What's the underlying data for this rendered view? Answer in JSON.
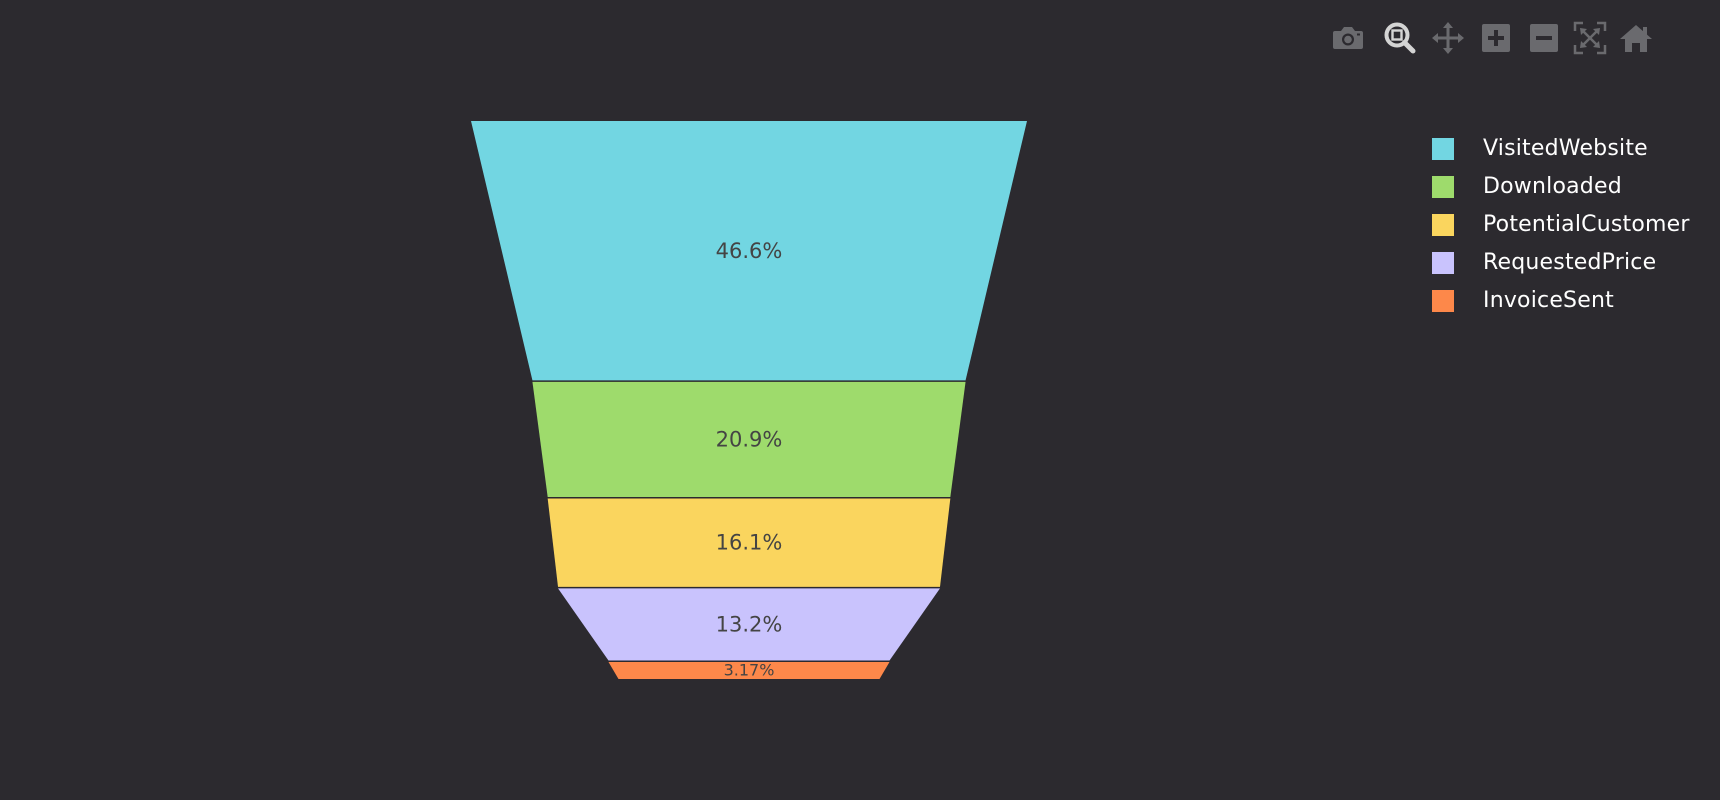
{
  "chart_data": {
    "type": "funnel",
    "categories": [
      "VisitedWebsite",
      "Downloaded",
      "PotentialCustomer",
      "RequestedPrice",
      "InvoiceSent"
    ],
    "values_percent_of_total": [
      46.6,
      20.9,
      16.1,
      13.2,
      3.17
    ],
    "text_labels": [
      "46.6%",
      "20.9%",
      "16.1%",
      "13.2%",
      "3.17%"
    ],
    "colors": [
      "#72d6e2",
      "#9edb6c",
      "#fad55e",
      "#c9c3fd",
      "#fd884a"
    ],
    "legend_placement": "top-right",
    "grid": false
  },
  "legend": {
    "items": [
      {
        "label": "VisitedWebsite",
        "color": "#72d6e2"
      },
      {
        "label": "Downloaded",
        "color": "#9edb6c"
      },
      {
        "label": "PotentialCustomer",
        "color": "#fad55e"
      },
      {
        "label": "RequestedPrice",
        "color": "#c9c3fd"
      },
      {
        "label": "InvoiceSent",
        "color": "#fd884a"
      }
    ]
  },
  "modebar": {
    "buttons": [
      {
        "icon": "camera-icon"
      },
      {
        "icon": "zoom-icon"
      },
      {
        "icon": "pan-icon"
      },
      {
        "icon": "zoom-in-icon"
      },
      {
        "icon": "zoom-out-icon"
      },
      {
        "icon": "autoscale-icon"
      },
      {
        "icon": "home-icon"
      }
    ],
    "active_color": "#d4d4d4",
    "inactive_color": "#6a6a6e"
  },
  "theme": {
    "background": "#2c2a2f",
    "label_color": "#444444",
    "separator_color": "#2c2a2f"
  }
}
